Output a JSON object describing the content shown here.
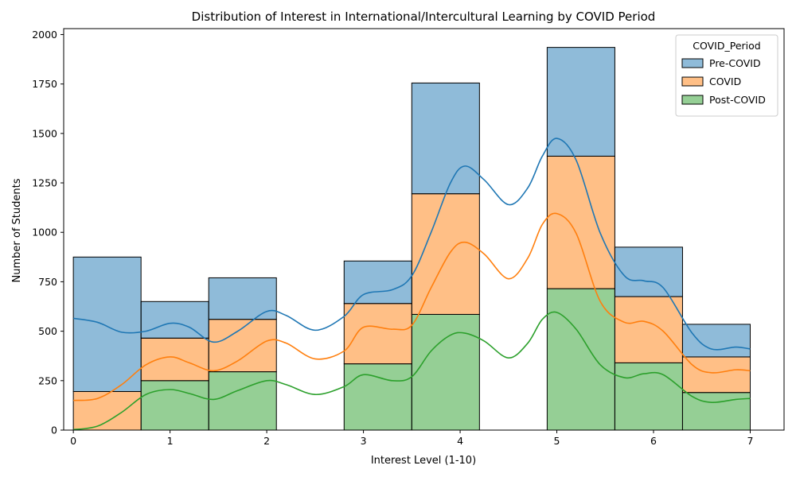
{
  "chart_data": {
    "type": "bar",
    "stacked": true,
    "title": "Distribution of Interest in International/Intercultural Learning by COVID Period",
    "xlabel": "Interest Level (1-10)",
    "ylabel": "Number of Students",
    "xlim": [
      -0.1,
      7.35
    ],
    "ylim": [
      0,
      2030
    ],
    "x_ticks": [
      "0",
      "1",
      "2",
      "3",
      "4",
      "5",
      "6",
      "7"
    ],
    "y_ticks": [
      "0",
      "250",
      "500",
      "750",
      "1000",
      "1250",
      "1500",
      "1750",
      "2000"
    ],
    "bin_edges": [
      0,
      0.7,
      1.4,
      2.1,
      2.8,
      3.5,
      4.2,
      4.9,
      5.6,
      6.3,
      7.0
    ],
    "legend_title": "COVID_Period",
    "legend_position": "top-right",
    "grid": false,
    "series": [
      {
        "name": "Post-COVID",
        "color": "#2ca02c",
        "values": [
          0,
          250,
          295,
          0,
          335,
          585,
          0,
          715,
          340,
          190
        ]
      },
      {
        "name": "COVID",
        "color": "#ff7f0e",
        "values": [
          195,
          215,
          265,
          0,
          305,
          610,
          0,
          670,
          335,
          180
        ]
      },
      {
        "name": "Pre-COVID",
        "color": "#1f77b4",
        "values": [
          680,
          185,
          210,
          0,
          215,
          560,
          0,
          550,
          250,
          165
        ]
      }
    ],
    "kde": [
      {
        "name": "Pre-COVID",
        "color": "#1f77b4",
        "x": [
          0,
          0.25,
          0.5,
          0.75,
          1.0,
          1.2,
          1.45,
          1.7,
          2.0,
          2.2,
          2.5,
          2.8,
          3.0,
          3.3,
          3.5,
          3.7,
          3.9,
          4.05,
          4.25,
          4.5,
          4.7,
          4.85,
          5.0,
          5.2,
          5.45,
          5.7,
          5.9,
          6.1,
          6.4,
          6.6,
          6.85,
          7.0
        ],
        "y": [
          565,
          545,
          495,
          500,
          540,
          520,
          445,
          500,
          600,
          580,
          505,
          575,
          685,
          710,
          780,
          1000,
          1250,
          1335,
          1265,
          1140,
          1225,
          1385,
          1475,
          1365,
          995,
          780,
          755,
          720,
          490,
          410,
          420,
          410
        ]
      },
      {
        "name": "COVID",
        "color": "#ff7f0e",
        "x": [
          0,
          0.25,
          0.5,
          0.75,
          1.0,
          1.2,
          1.45,
          1.7,
          2.0,
          2.2,
          2.5,
          2.8,
          3.0,
          3.3,
          3.5,
          3.7,
          3.9,
          4.05,
          4.25,
          4.5,
          4.7,
          4.85,
          5.0,
          5.2,
          5.45,
          5.7,
          5.9,
          6.1,
          6.4,
          6.6,
          6.85,
          7.0
        ],
        "y": [
          150,
          160,
          230,
          330,
          370,
          340,
          300,
          350,
          450,
          440,
          360,
          400,
          520,
          510,
          530,
          720,
          900,
          950,
          890,
          765,
          870,
          1040,
          1095,
          995,
          650,
          545,
          550,
          500,
          330,
          290,
          305,
          300
        ]
      },
      {
        "name": "Post-COVID",
        "color": "#2ca02c",
        "x": [
          0,
          0.25,
          0.5,
          0.75,
          1.0,
          1.2,
          1.45,
          1.7,
          2.0,
          2.2,
          2.5,
          2.8,
          3.0,
          3.3,
          3.5,
          3.7,
          3.9,
          4.05,
          4.25,
          4.5,
          4.7,
          4.85,
          5.0,
          5.2,
          5.45,
          5.7,
          5.9,
          6.1,
          6.4,
          6.6,
          6.85,
          7.0
        ],
        "y": [
          2,
          20,
          90,
          180,
          205,
          185,
          155,
          200,
          250,
          230,
          180,
          220,
          280,
          250,
          270,
          400,
          480,
          490,
          450,
          365,
          440,
          560,
          595,
          510,
          330,
          265,
          285,
          280,
          170,
          140,
          155,
          160
        ]
      }
    ]
  }
}
